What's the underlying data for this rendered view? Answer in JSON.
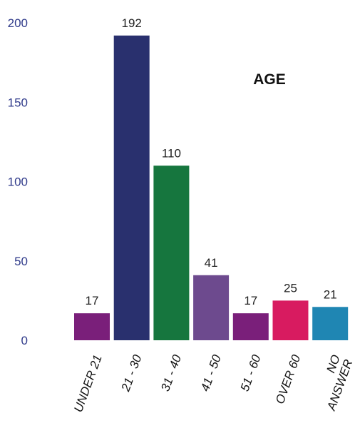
{
  "chart_data": {
    "type": "bar",
    "title": "AGE",
    "xlabel": "",
    "ylabel": "",
    "categories": [
      "UNDER 21",
      "21 - 30",
      "31 - 40",
      "41 - 50",
      "51 - 60",
      "OVER 60",
      "NO ANSWER"
    ],
    "values": [
      17,
      192,
      110,
      41,
      17,
      25,
      21
    ],
    "colors": [
      "#7a1f7a",
      "#29306e",
      "#16763e",
      "#6d4a8e",
      "#7a1f7a",
      "#d81b60",
      "#1f86b3"
    ],
    "ylim": [
      0,
      200
    ],
    "yticks": [
      0,
      50,
      100,
      150,
      200
    ],
    "grid": false,
    "legend": "none"
  }
}
